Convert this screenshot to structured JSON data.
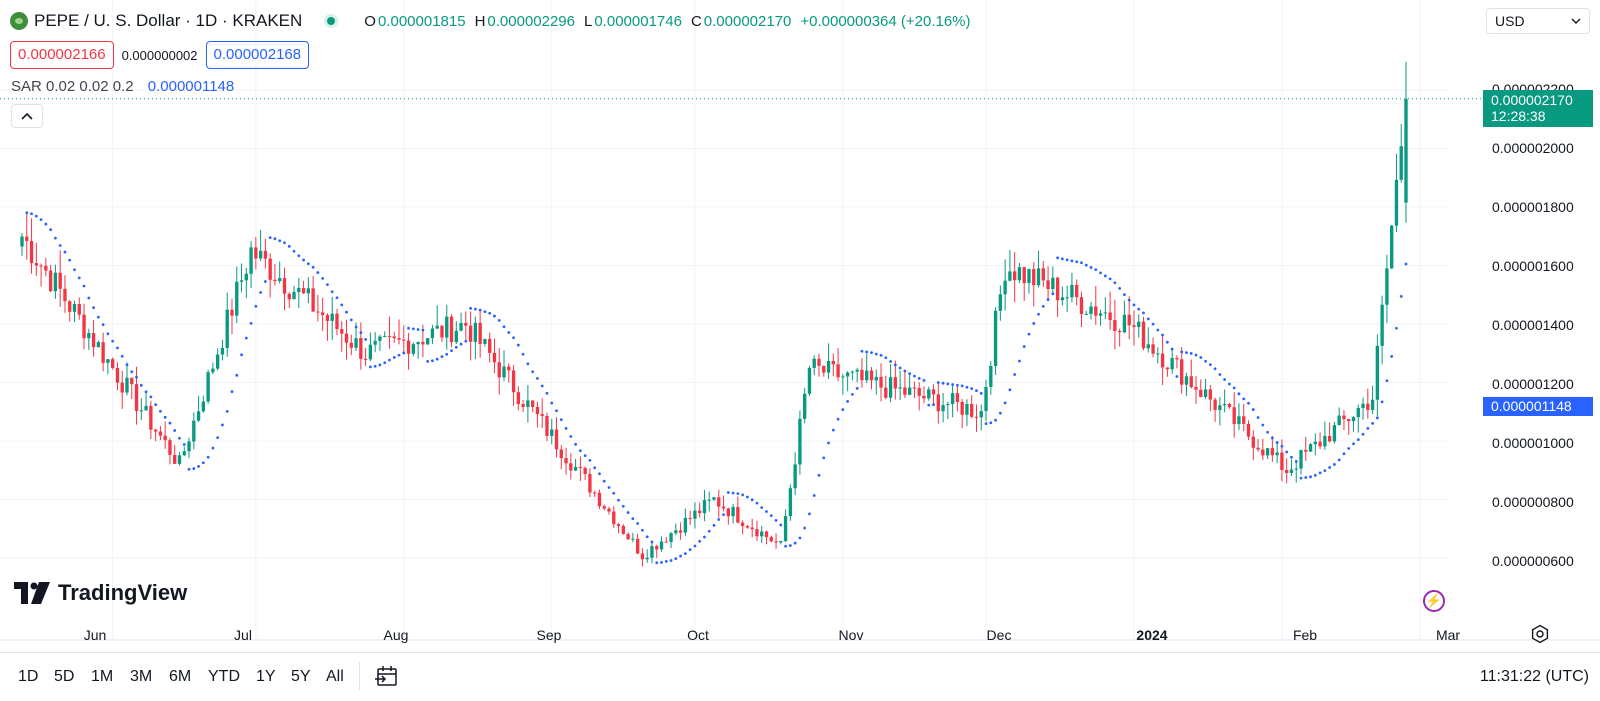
{
  "header": {
    "symbol_title": "PEPE / U. S. Dollar · 1D · KRAKEN",
    "ohlc": [
      {
        "key": "O",
        "value": "0.000001815"
      },
      {
        "key": "H",
        "value": "0.000002296"
      },
      {
        "key": "L",
        "value": "0.000001746"
      },
      {
        "key": "C",
        "value": "0.000002170"
      }
    ],
    "change": "+0.000000364 (+20.16%)"
  },
  "quote": {
    "bid": "0.000002166",
    "spread": "0.000000002",
    "ask": "0.000002168"
  },
  "indicator": {
    "name": "SAR",
    "params": "0.02 0.02 0.2",
    "value": "0.000001148"
  },
  "currency_select": {
    "value": "USD"
  },
  "price_axis": {
    "labels": [
      "0.000002200",
      "0.000002000",
      "0.000001800",
      "0.000001600",
      "0.000001400",
      "0.000001200",
      "0.000001000",
      "0.000000800",
      "0.000000600"
    ],
    "last_price": "0.000002170",
    "countdown": "12:28:38",
    "sar_value": "0.000001148"
  },
  "time_axis": {
    "labels": [
      {
        "text": "Jun",
        "year": false
      },
      {
        "text": "Jul",
        "year": false
      },
      {
        "text": "Aug",
        "year": false
      },
      {
        "text": "Sep",
        "year": false
      },
      {
        "text": "Oct",
        "year": false
      },
      {
        "text": "Nov",
        "year": false
      },
      {
        "text": "Dec",
        "year": false
      },
      {
        "text": "2024",
        "year": true
      },
      {
        "text": "Feb",
        "year": false
      },
      {
        "text": "Mar",
        "year": false
      }
    ]
  },
  "logo": {
    "text": "TradingView"
  },
  "bottom_bar": {
    "ranges": [
      "1D",
      "5D",
      "1M",
      "3M",
      "6M",
      "YTD",
      "1Y",
      "5Y",
      "All"
    ],
    "clock": "11:31:22 (UTC)"
  },
  "colors": {
    "up": "#089981",
    "down": "#f23645",
    "sar": "#2962ff",
    "grid": "#f0f3fa"
  },
  "chart_data": {
    "type": "candlestick",
    "symbol": "PEPE/USD",
    "interval": "1D",
    "ylim": [
      5.5e-07,
      2.35e-06
    ],
    "key_points": [
      {
        "date": "2023-05-13",
        "close": 1.7e-06
      },
      {
        "date": "2023-06-15",
        "close": 9.2e-07
      },
      {
        "date": "2023-06-30",
        "close": 1.65e-06
      },
      {
        "date": "2023-07-24",
        "close": 1.3e-06
      },
      {
        "date": "2023-08-14",
        "close": 1.4e-06
      },
      {
        "date": "2023-09-20",
        "close": 6.1e-07
      },
      {
        "date": "2023-10-05",
        "close": 8e-07
      },
      {
        "date": "2023-10-19",
        "close": 6.4e-07
      },
      {
        "date": "2023-10-25",
        "close": 1.25e-06
      },
      {
        "date": "2023-11-30",
        "close": 1.1e-06
      },
      {
        "date": "2023-12-05",
        "close": 1.6e-06
      },
      {
        "date": "2023-12-31",
        "close": 1.4e-06
      },
      {
        "date": "2024-02-02",
        "close": 9e-07
      },
      {
        "date": "2024-02-20",
        "close": 1.15e-06
      },
      {
        "date": "2024-02-27",
        "close": 2.17e-06
      }
    ],
    "last": {
      "open": 1.815e-06,
      "high": 2.296e-06,
      "low": 1.746e-06,
      "close": 2.17e-06
    }
  }
}
